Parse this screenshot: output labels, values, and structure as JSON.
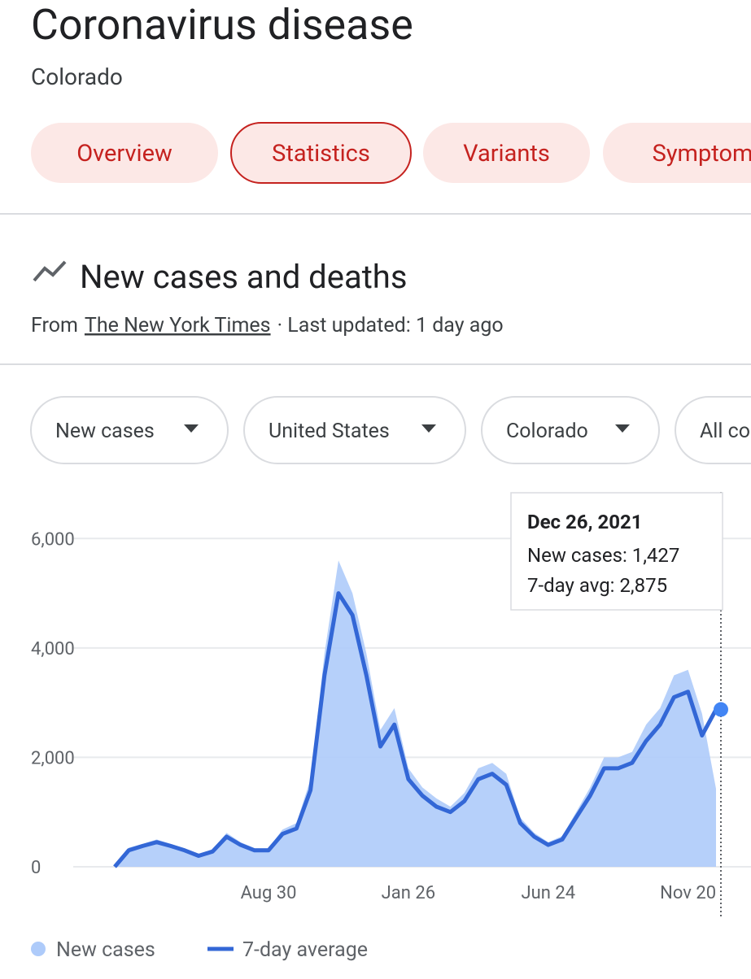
{
  "header": {
    "title": "Coronavirus disease",
    "subtitle": "Colorado"
  },
  "tabs": [
    "Overview",
    "Statistics",
    "Variants",
    "Symptoms"
  ],
  "section": {
    "title": "New cases and deaths",
    "source_prefix": "From",
    "source_link": "The New York Times",
    "source_suffix": "· Last updated: 1 day ago"
  },
  "filters": [
    "New cases",
    "United States",
    "Colorado",
    "All counties"
  ],
  "tooltip": {
    "title": "Dec 26, 2021",
    "rows": [
      "New cases: 1,427",
      "7-day avg: 2,875"
    ]
  },
  "chart_data": {
    "type": "line",
    "categories": [
      null,
      null,
      null,
      null,
      null,
      null,
      null,
      null,
      null,
      null,
      null,
      "Aug 30",
      null,
      null,
      null,
      null,
      null,
      null,
      null,
      null,
      null,
      "Jan 26",
      null,
      null,
      null,
      null,
      null,
      null,
      null,
      null,
      null,
      "Jun 24",
      null,
      null,
      null,
      null,
      null,
      null,
      null,
      null,
      null,
      "Nov 20",
      null,
      null
    ],
    "series": [
      {
        "name": "New cases",
        "color": "#aecbfa",
        "values": [
          0,
          350,
          420,
          500,
          420,
          330,
          230,
          320,
          620,
          450,
          340,
          340,
          680,
          800,
          1600,
          3900,
          5600,
          5000,
          3900,
          2500,
          2900,
          1800,
          1450,
          1250,
          1100,
          1350,
          1800,
          1900,
          1700,
          900,
          620,
          450,
          560,
          1000,
          1450,
          2000,
          2000,
          2100,
          2600,
          2900,
          3500,
          3600,
          2800,
          1427
        ]
      },
      {
        "name": "7-day average",
        "color": "#3367d6",
        "values": [
          0,
          300,
          380,
          450,
          380,
          300,
          200,
          280,
          550,
          400,
          300,
          300,
          600,
          700,
          1400,
          3500,
          5000,
          4600,
          3500,
          2200,
          2600,
          1600,
          1300,
          1100,
          1000,
          1200,
          1600,
          1700,
          1500,
          800,
          550,
          400,
          500,
          900,
          1300,
          1800,
          1800,
          1900,
          2300,
          2600,
          3100,
          3200,
          2400,
          2875
        ]
      }
    ],
    "ylim": [
      0,
      7000
    ],
    "yticks": [
      0,
      {
        "value": 2000,
        "label": "2,000"
      },
      {
        "value": 4000,
        "label": "4,000"
      },
      {
        "value": 6000,
        "label": "6,000"
      }
    ],
    "grid": true
  }
}
